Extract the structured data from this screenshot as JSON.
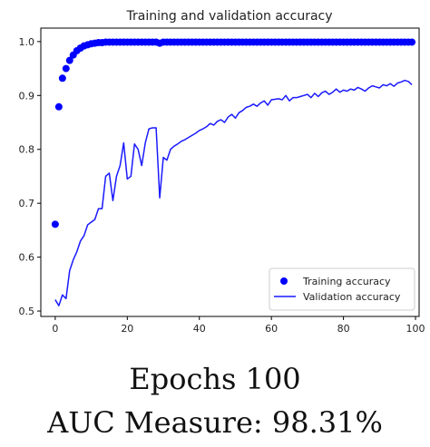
{
  "chart_data": {
    "type": "scatter",
    "title": "Training and validation accuracy",
    "xlabel": "",
    "ylabel": "",
    "xlim": [
      -4,
      101
    ],
    "ylim": [
      0.49,
      1.025
    ],
    "xticks": [
      0,
      20,
      40,
      60,
      80,
      100
    ],
    "yticks": [
      0.5,
      0.6,
      0.7,
      0.8,
      0.9,
      1.0
    ],
    "xtick_labels": [
      "0",
      "20",
      "40",
      "60",
      "80",
      "100"
    ],
    "ytick_labels": [
      "0.5",
      "0.6",
      "0.7",
      "0.8",
      "0.9",
      "1.0"
    ],
    "legend_position": "lower-right",
    "grid": false,
    "series": [
      {
        "name": "Training accuracy",
        "kind": "points",
        "color": "#0000ff",
        "x": [
          0,
          1,
          2,
          3,
          4,
          5,
          6,
          7,
          8,
          9,
          10,
          11,
          12,
          13,
          14,
          15,
          16,
          17,
          18,
          19,
          20,
          21,
          22,
          23,
          24,
          25,
          26,
          27,
          28,
          29,
          30,
          31,
          32,
          33,
          34,
          35,
          36,
          37,
          38,
          39,
          40,
          41,
          42,
          43,
          44,
          45,
          46,
          47,
          48,
          49,
          50,
          51,
          52,
          53,
          54,
          55,
          56,
          57,
          58,
          59,
          60,
          61,
          62,
          63,
          64,
          65,
          66,
          67,
          68,
          69,
          70,
          71,
          72,
          73,
          74,
          75,
          76,
          77,
          78,
          79,
          80,
          81,
          82,
          83,
          84,
          85,
          86,
          87,
          88,
          89,
          90,
          91,
          92,
          93,
          94,
          95,
          96,
          97,
          98,
          99
        ],
        "y": [
          0.661,
          0.879,
          0.932,
          0.95,
          0.965,
          0.975,
          0.983,
          0.988,
          0.992,
          0.994,
          0.996,
          0.997,
          0.998,
          0.998,
          0.999,
          0.999,
          0.999,
          0.999,
          0.999,
          0.999,
          0.999,
          0.999,
          0.999,
          0.999,
          0.999,
          0.999,
          0.999,
          0.999,
          0.999,
          0.997,
          0.999,
          0.999,
          0.999,
          0.999,
          0.999,
          0.999,
          0.999,
          0.999,
          0.999,
          0.999,
          0.999,
          0.999,
          0.999,
          0.999,
          0.999,
          0.999,
          0.999,
          0.999,
          0.999,
          0.999,
          0.999,
          0.999,
          0.999,
          0.999,
          0.999,
          0.999,
          0.999,
          0.999,
          0.999,
          0.999,
          0.999,
          0.999,
          0.999,
          0.999,
          0.999,
          0.999,
          0.999,
          0.999,
          0.999,
          0.999,
          0.999,
          0.999,
          0.999,
          0.999,
          0.999,
          0.999,
          0.999,
          0.999,
          0.999,
          0.999,
          0.999,
          0.999,
          0.999,
          0.999,
          0.999,
          0.999,
          0.999,
          0.999,
          0.999,
          0.999,
          0.999,
          0.999,
          0.999,
          0.999,
          0.999,
          0.999,
          0.999,
          0.999,
          0.999,
          0.999
        ]
      },
      {
        "name": "Validation accuracy",
        "kind": "line",
        "color": "#1a1aff",
        "x": [
          0,
          1,
          2,
          3,
          4,
          5,
          6,
          7,
          8,
          9,
          10,
          11,
          12,
          13,
          14,
          15,
          16,
          17,
          18,
          19,
          20,
          21,
          22,
          23,
          24,
          25,
          26,
          27,
          28,
          29,
          30,
          31,
          32,
          33,
          34,
          35,
          36,
          37,
          38,
          39,
          40,
          41,
          42,
          43,
          44,
          45,
          46,
          47,
          48,
          49,
          50,
          51,
          52,
          53,
          54,
          55,
          56,
          57,
          58,
          59,
          60,
          61,
          62,
          63,
          64,
          65,
          66,
          67,
          68,
          69,
          70,
          71,
          72,
          73,
          74,
          75,
          76,
          77,
          78,
          79,
          80,
          81,
          82,
          83,
          84,
          85,
          86,
          87,
          88,
          89,
          90,
          91,
          92,
          93,
          94,
          95,
          96,
          97,
          98,
          99
        ],
        "y": [
          0.521,
          0.51,
          0.53,
          0.523,
          0.575,
          0.595,
          0.61,
          0.63,
          0.64,
          0.66,
          0.665,
          0.67,
          0.69,
          0.69,
          0.75,
          0.756,
          0.705,
          0.75,
          0.77,
          0.812,
          0.745,
          0.75,
          0.81,
          0.8,
          0.77,
          0.812,
          0.838,
          0.84,
          0.84,
          0.71,
          0.785,
          0.78,
          0.8,
          0.806,
          0.81,
          0.815,
          0.818,
          0.822,
          0.826,
          0.83,
          0.835,
          0.838,
          0.842,
          0.848,
          0.845,
          0.852,
          0.855,
          0.85,
          0.86,
          0.865,
          0.858,
          0.868,
          0.872,
          0.878,
          0.88,
          0.884,
          0.88,
          0.886,
          0.89,
          0.882,
          0.892,
          0.893,
          0.894,
          0.892,
          0.9,
          0.89,
          0.896,
          0.896,
          0.898,
          0.9,
          0.902,
          0.896,
          0.904,
          0.898,
          0.905,
          0.908,
          0.902,
          0.906,
          0.912,
          0.906,
          0.91,
          0.908,
          0.912,
          0.91,
          0.915,
          0.912,
          0.908,
          0.914,
          0.918,
          0.916,
          0.914,
          0.92,
          0.918,
          0.922,
          0.917,
          0.923,
          0.925,
          0.928,
          0.926,
          0.92
        ]
      }
    ]
  },
  "caption": {
    "line1": "Epochs 100",
    "line2": "AUC Measure: 98.31%"
  }
}
